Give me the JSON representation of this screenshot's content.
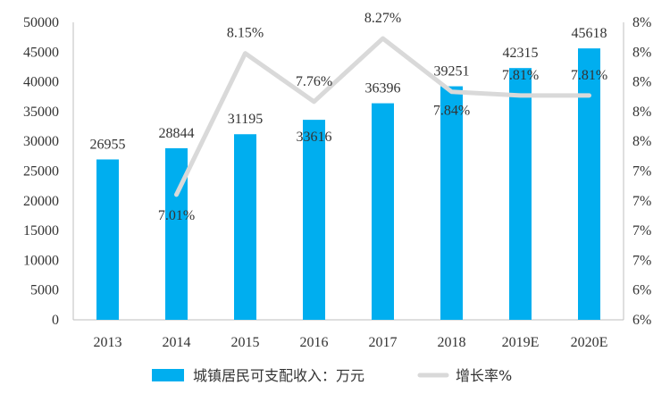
{
  "chart_data": {
    "type": "bar",
    "categories": [
      "2013",
      "2014",
      "2015",
      "2016",
      "2017",
      "2018",
      "2019E",
      "2020E"
    ],
    "series": [
      {
        "name": "城镇居民可支配收入：万元",
        "type": "bar",
        "axis": "left",
        "color": "#00AEEF",
        "values": [
          26955,
          28844,
          31195,
          33616,
          36396,
          39251,
          42315,
          45618
        ],
        "labels": [
          "26955",
          "28844",
          "31195",
          "33616",
          "36396",
          "39251",
          "42315",
          "45618"
        ]
      },
      {
        "name": "增长率%",
        "type": "line",
        "axis": "right",
        "color": "#D9D9D9",
        "values": [
          null,
          7.01,
          8.15,
          7.76,
          8.27,
          7.84,
          7.81,
          7.81
        ],
        "labels": [
          "",
          "7.01%",
          "8.15%",
          "7.76%",
          "8.27%",
          "7.84%",
          "7.81%",
          "7.81%"
        ]
      }
    ],
    "y_left": {
      "ylim": [
        0,
        50000
      ],
      "ticks": [
        "0",
        "5000",
        "10000",
        "15000",
        "20000",
        "25000",
        "30000",
        "35000",
        "40000",
        "45000",
        "50000"
      ]
    },
    "y_right": {
      "ylim": [
        6.0,
        8.4
      ],
      "ticks": [
        "6%",
        "6%",
        "7%",
        "7%",
        "7%",
        "7%",
        "8%",
        "8%",
        "8%",
        "8%",
        "8%"
      ]
    },
    "title": "",
    "xlabel": "",
    "ylabel": "",
    "grid": false,
    "legend_position": "bottom"
  }
}
